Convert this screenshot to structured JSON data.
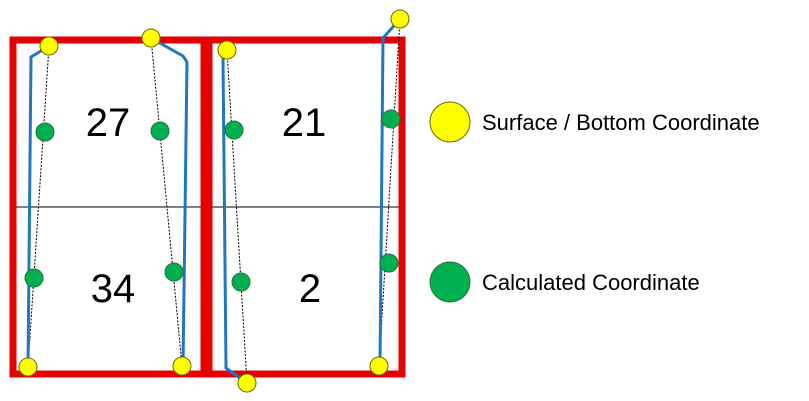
{
  "cells": {
    "top_left": "27",
    "bottom_left": "34",
    "top_right": "21",
    "bottom_right": "2"
  },
  "legend": {
    "surface_bottom": "Surface / Bottom Coordinate",
    "calculated": "Calculated Coordinate"
  },
  "colors": {
    "border": "#e60000",
    "well_path": "#1f77c4",
    "surface_bottom_marker": "#ffff00",
    "calculated_marker": "#00b050",
    "divider": "#000000"
  }
}
